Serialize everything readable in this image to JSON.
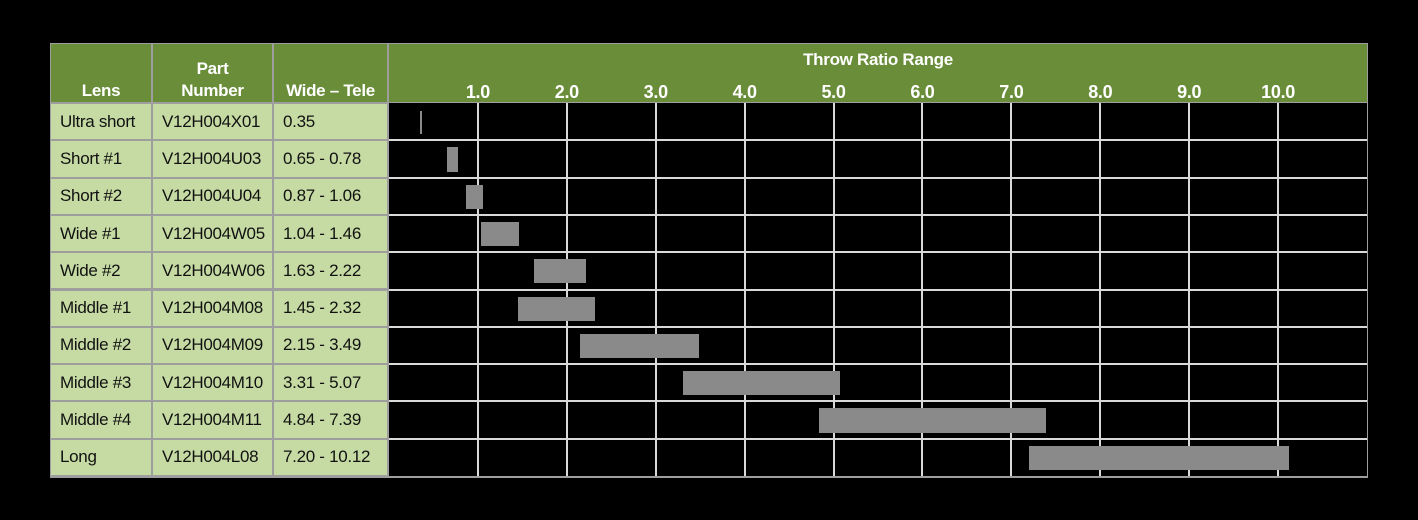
{
  "table": {
    "headers": {
      "lens": "Lens",
      "part_line1": "Part",
      "part_line2": "Number",
      "range": "Wide – Tele",
      "chart": "Throw Ratio Range"
    }
  },
  "chart_data": {
    "type": "table",
    "title": "Throw Ratio Range",
    "x_ticks": [
      "1.0",
      "2.0",
      "3.0",
      "4.0",
      "5.0",
      "6.0",
      "7.0",
      "8.0",
      "9.0",
      "10.0"
    ],
    "xlim": [
      0.0,
      11.0
    ],
    "grid": true,
    "rows": [
      {
        "lens": "Ultra short",
        "part": "V12H004X01",
        "range_label": "0.35",
        "wide": 0.35,
        "tele": 0.35
      },
      {
        "lens": "Short #1",
        "part": "V12H004U03",
        "range_label": "0.65 - 0.78",
        "wide": 0.65,
        "tele": 0.78
      },
      {
        "lens": "Short #2",
        "part": "V12H004U04",
        "range_label": "0.87 - 1.06",
        "wide": 0.87,
        "tele": 1.06
      },
      {
        "lens": "Wide #1",
        "part": "V12H004W05",
        "range_label": "1.04 - 1.46",
        "wide": 1.04,
        "tele": 1.46
      },
      {
        "lens": "Wide #2",
        "part": "V12H004W06",
        "range_label": "1.63 - 2.22",
        "wide": 1.63,
        "tele": 2.22
      },
      {
        "lens": "Middle #1",
        "part": "V12H004M08",
        "range_label": "1.45 - 2.32",
        "wide": 1.45,
        "tele": 2.32
      },
      {
        "lens": "Middle #2",
        "part": "V12H004M09",
        "range_label": "2.15 - 3.49",
        "wide": 2.15,
        "tele": 3.49
      },
      {
        "lens": "Middle #3",
        "part": "V12H004M10",
        "range_label": "3.31 - 5.07",
        "wide": 3.31,
        "tele": 5.07
      },
      {
        "lens": "Middle #4",
        "part": "V12H004M11",
        "range_label": "4.84 - 7.39",
        "wide": 4.84,
        "tele": 7.39
      },
      {
        "lens": "Long",
        "part": "V12H004L08",
        "range_label": "7.20 - 10.12",
        "wide": 7.2,
        "tele": 10.12
      }
    ],
    "colors": {
      "header": "#6a8d3a",
      "label_cell": "#c6dba3",
      "bar": "#8a8a8a",
      "plot_bg": "#000000"
    }
  }
}
